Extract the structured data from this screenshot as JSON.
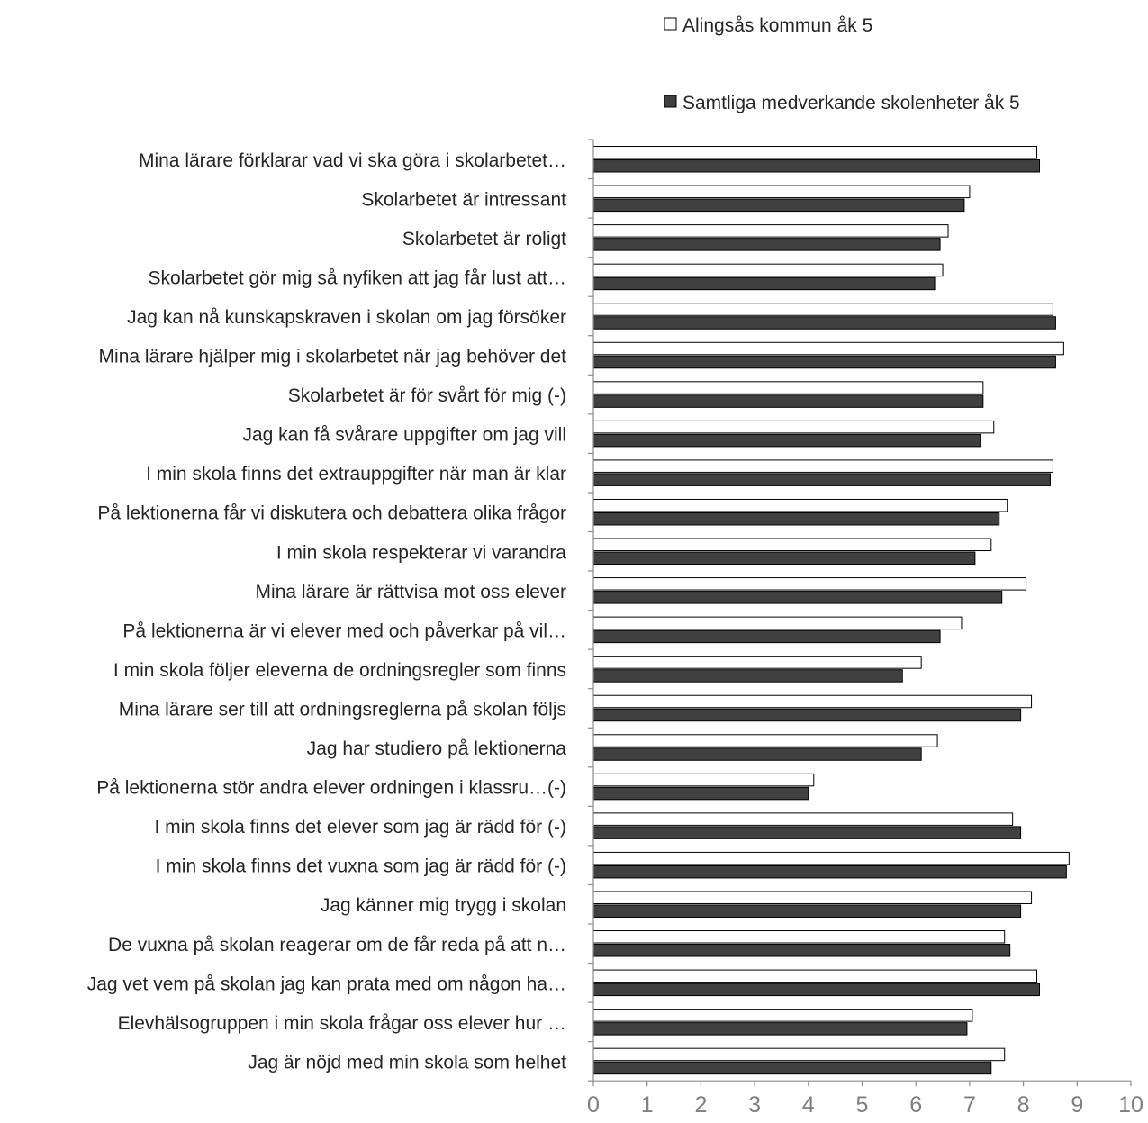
{
  "chart_data": {
    "type": "bar",
    "orientation": "horizontal",
    "categories": [
      "Mina lärare förklarar vad vi ska göra i skolarbetet…",
      "Skolarbetet är intressant",
      "Skolarbetet är roligt",
      "Skolarbetet gör mig så nyfiken att jag får lust att…",
      "Jag kan nå kunskapskraven i skolan om jag försöker",
      "Mina lärare hjälper mig i skolarbetet när jag behöver det",
      "Skolarbetet är för svårt för mig (-)",
      "Jag kan få svårare uppgifter om jag vill",
      "I min skola finns det extrauppgifter när man är klar",
      "På lektionerna får vi diskutera och debattera olika frågor",
      "I min skola respekterar vi varandra",
      "Mina lärare är rättvisa mot oss elever",
      "På lektionerna är vi elever med och påverkar på vil…",
      "I min skola följer eleverna de ordningsregler som finns",
      "Mina lärare ser till att ordningsreglerna på skolan följs",
      "Jag har studiero på lektionerna",
      "På lektionerna stör andra elever ordningen i klassru…(-)",
      "I min skola finns det elever som jag är rädd för (-)",
      "I min skola finns det vuxna som jag är rädd för (-)",
      "Jag känner mig trygg i skolan",
      "De vuxna på skolan reagerar om de får reda på att n…",
      "Jag vet vem på skolan jag kan prata med om någon ha…",
      "Elevhälsogruppen i min skola frågar oss elever hur …",
      "Jag är nöjd med min skola som helhet"
    ],
    "series": [
      {
        "name": "Alingsås kommun åk 5",
        "color": "#ffffff",
        "values": [
          8.25,
          7.0,
          6.6,
          6.5,
          8.55,
          8.75,
          7.25,
          7.45,
          8.55,
          7.7,
          7.4,
          8.05,
          6.85,
          6.1,
          8.15,
          6.4,
          4.1,
          7.8,
          8.85,
          8.15,
          7.65,
          8.25,
          7.05,
          7.65
        ]
      },
      {
        "name": "Samtliga medverkande skolenheter åk 5",
        "color": "#404040",
        "values": [
          8.3,
          6.9,
          6.45,
          6.35,
          8.6,
          8.6,
          7.25,
          7.2,
          8.5,
          7.55,
          7.1,
          7.6,
          6.45,
          5.75,
          7.95,
          6.1,
          4.0,
          7.95,
          8.8,
          7.95,
          7.75,
          8.3,
          6.95,
          7.4
        ]
      }
    ],
    "xlim": [
      0,
      10
    ],
    "xticks": [
      "0",
      "1",
      "2",
      "3",
      "4",
      "5",
      "6",
      "7",
      "8",
      "9",
      "10"
    ],
    "grid": false,
    "legend_position": "top-right"
  }
}
